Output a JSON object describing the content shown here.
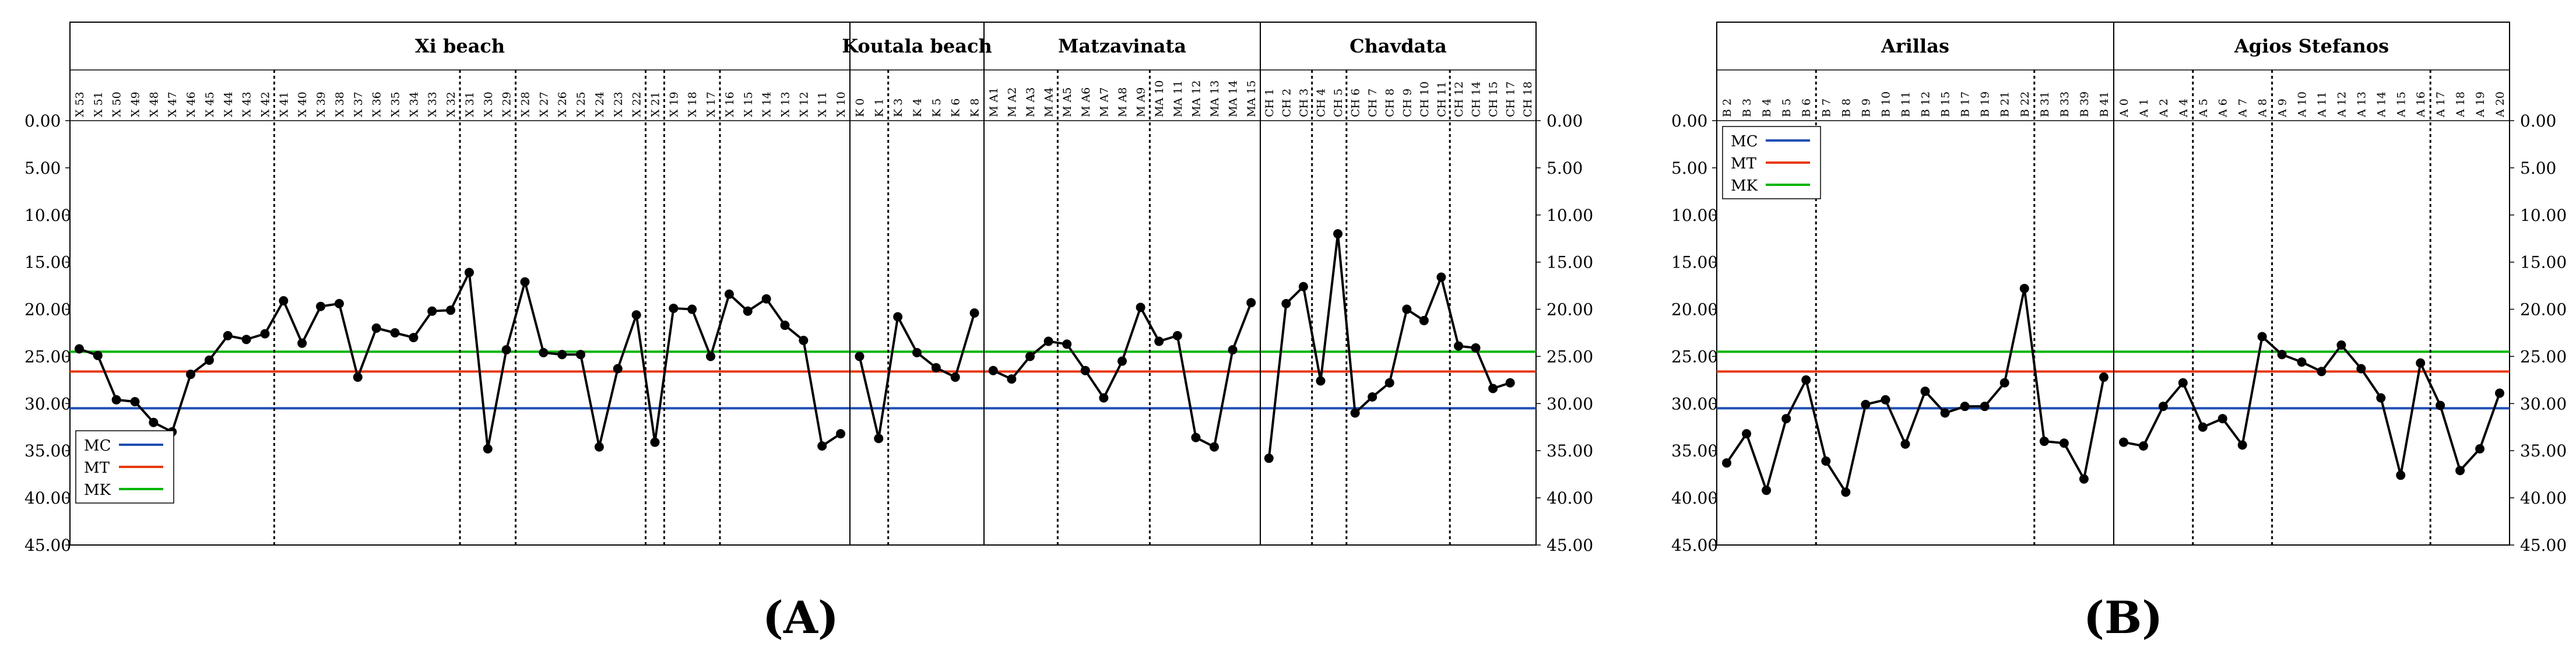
{
  "colors": {
    "MC": "#1f4fb4",
    "MT": "#e8380d",
    "MK": "#00b400",
    "series": "#000000",
    "frame": "#000000"
  },
  "yaxis": {
    "min": 0,
    "max": 45,
    "tick_step": 5,
    "decimals": 2,
    "inverted": true,
    "ticks": [
      "0.00",
      "5.00",
      "10.00",
      "15.00",
      "20.00",
      "25.00",
      "30.00",
      "35.00",
      "40.00",
      "45.00"
    ]
  },
  "legend_labels": [
    "MC",
    "MT",
    "MK"
  ],
  "panel_letters": {
    "A": "(A)",
    "B": "(B)"
  },
  "chart_data": [
    {
      "type": "line",
      "panel": "A",
      "legend_placement": "bottom-left",
      "reference_lines": [
        {
          "name": "MC",
          "value": 30.5
        },
        {
          "name": "MT",
          "value": 26.6
        },
        {
          "name": "MK",
          "value": 24.5
        }
      ],
      "groups": [
        {
          "title": "Xi beach",
          "labels": [
            "X 53",
            "X 51",
            "X 50",
            "X 49",
            "X 48",
            "X 47",
            "X 46",
            "X 45",
            "X 44",
            "X 43",
            "X 42",
            "X 41",
            "X 40",
            "X 39",
            "X 38",
            "X 37",
            "X 36",
            "X 35",
            "X 34",
            "X 33",
            "X 32",
            "X 31",
            "X 30",
            "X 29",
            "X 28",
            "X 27",
            "X 26",
            "X 25",
            "X 24",
            "X 23",
            "X 22",
            "X 21",
            "X 19",
            "X 18",
            "X 17",
            "X 16",
            "X 15",
            "X 14",
            "X 13",
            "X 12",
            "X 11",
            "X 10"
          ],
          "values": [
            24.2,
            24.9,
            29.6,
            29.8,
            32.0,
            33.0,
            26.9,
            25.4,
            22.8,
            23.2,
            22.6,
            19.1,
            23.6,
            19.7,
            19.4,
            27.2,
            22.0,
            22.5,
            23.0,
            20.2,
            20.1,
            16.1,
            34.8,
            24.3,
            17.1,
            24.6,
            24.8,
            24.8,
            34.6,
            26.3,
            20.6,
            34.1,
            19.9,
            20.0,
            25.0,
            18.4,
            20.2,
            18.9,
            21.7,
            23.3,
            34.5,
            33.2
          ],
          "separators_after": [
            10,
            20,
            23,
            30,
            31,
            34
          ]
        },
        {
          "title": "Koutala beach",
          "labels": [
            "K 0",
            "K 1",
            "K 3",
            "K 4",
            "K 5",
            "K 6",
            "K 8"
          ],
          "values": [
            25.0,
            33.7,
            20.8,
            24.6,
            26.2,
            27.2,
            20.4
          ],
          "separators_after": [
            1
          ]
        },
        {
          "title": "Matzavinata",
          "labels": [
            "M A1",
            "M A2",
            "M A3",
            "M A4",
            "M A5",
            "M A6",
            "M A7",
            "M A8",
            "M A9",
            "MA 10",
            "MA 11",
            "MA 12",
            "MA 13",
            "MA 14",
            "MA 15"
          ],
          "values": [
            26.5,
            27.4,
            25.0,
            23.4,
            23.7,
            26.5,
            29.4,
            25.5,
            19.8,
            23.4,
            22.8,
            33.6,
            34.6,
            24.3,
            19.3
          ],
          "separators_after": [
            3,
            8
          ]
        },
        {
          "title": "Chavdata",
          "labels": [
            "CH 1",
            "CH 2",
            "CH 3",
            "CH 4",
            "CH 5",
            "CH 6",
            "CH 7",
            "CH 8",
            "CH 9",
            "CH 10",
            "CH 11",
            "CH 12",
            "CH 14",
            "CH 15",
            "CH 17",
            "CH 18"
          ],
          "values": [
            35.8,
            19.4,
            17.6,
            27.6,
            12.0,
            31.0,
            29.3,
            27.8,
            20.0,
            21.2,
            16.6,
            23.9,
            24.1,
            28.4,
            27.8,
            null
          ],
          "separators_after": [
            2,
            4,
            10
          ]
        }
      ]
    },
    {
      "type": "line",
      "panel": "B",
      "legend_placement": "top-left",
      "reference_lines": [
        {
          "name": "MC",
          "value": 30.5
        },
        {
          "name": "MT",
          "value": 26.6
        },
        {
          "name": "MK",
          "value": 24.5
        }
      ],
      "groups": [
        {
          "title": "Arillas",
          "labels": [
            "B 2",
            "B 3",
            "B 4",
            "B 5",
            "B 6",
            "B 7",
            "B 8",
            "B 9",
            "B 10",
            "B 11",
            "B 12",
            "B 15",
            "B 17",
            "B 19",
            "B 21",
            "B 22",
            "B 31",
            "B 33",
            "B 39",
            "B 41"
          ],
          "values": [
            36.3,
            33.2,
            39.2,
            31.6,
            27.5,
            36.1,
            39.4,
            30.1,
            29.6,
            34.3,
            28.7,
            31.0,
            30.3,
            30.3,
            27.8,
            17.8,
            34.0,
            34.2,
            38.0,
            27.2
          ],
          "separators_after": [
            4,
            15
          ]
        },
        {
          "title": "Agios Stefanos",
          "labels": [
            "A 0",
            "A 1",
            "A 2",
            "A 4",
            "A 5",
            "A 6",
            "A 7",
            "A 8",
            "A 9",
            "A 10",
            "A 11",
            "A 12",
            "A 13",
            "A 14",
            "A 15",
            "A 16",
            "A 17",
            "A 18",
            "A 19",
            "A 20"
          ],
          "values": [
            34.1,
            34.5,
            30.3,
            27.8,
            32.5,
            31.6,
            34.4,
            22.9,
            24.8,
            25.6,
            26.6,
            23.8,
            26.3,
            29.4,
            37.6,
            25.7,
            30.2,
            37.1,
            34.8,
            28.9
          ],
          "separators_after": [
            3,
            7,
            15
          ]
        }
      ]
    }
  ]
}
